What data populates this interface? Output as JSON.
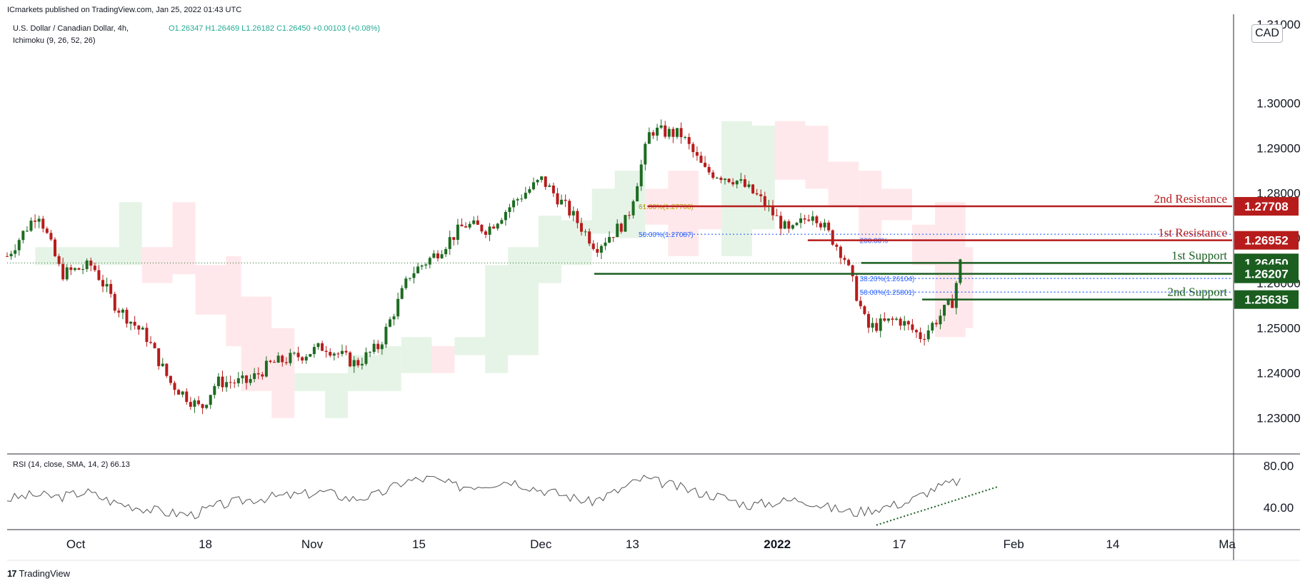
{
  "header": {
    "publisher": "ICmarkets published on TradingView.com, Jan 25, 2022 01:43 UTC",
    "symbol": "U.S. Dollar / Canadian Dollar, 4h,",
    "indicator": "Ichimoku (9, 26, 52, 26)",
    "ohlc": "O1.26347  H1.26469  L1.26182  C1.26450  +0.00103 (+0.08%)",
    "currency": "CAD"
  },
  "footer": {
    "logo": "17",
    "brand": "TradingView"
  },
  "colors": {
    "up": "#1e6b22",
    "down": "#b71c1c",
    "resistance": "#b71c1c",
    "support": "#1b5e20",
    "fib": "#2962ff",
    "rsi": "#555555",
    "cloud_green": "#c8e6c9",
    "cloud_red": "#ffcdd2"
  },
  "chart_data": {
    "type": "line",
    "title": "U.S. Dollar / Canadian Dollar, 4h",
    "y_axis": {
      "ticks": [
        1.3,
        1.29,
        1.28,
        1.27,
        1.26,
        1.25,
        1.24,
        1.23
      ],
      "tick_labels": [
        "1.30000",
        "1.29000",
        "1.28000",
        "1.27000",
        "1.26000",
        "1.25000",
        "1.24000",
        "1.23000"
      ],
      "partial_top_label": "1.31000",
      "ylim": [
        1.2225,
        1.3185
      ]
    },
    "x_axis": {
      "tick_labels": [
        "Oct",
        "18",
        "Nov",
        "15",
        "Dec",
        "13",
        "2022",
        "17",
        "Feb",
        "14",
        "Ma"
      ],
      "bold_labels": [
        "2022"
      ]
    },
    "price_path": {
      "dates": [
        "2021-09-24",
        "2021-09-28",
        "2021-10-01",
        "2021-10-05",
        "2021-10-08",
        "2021-10-12",
        "2021-10-15",
        "2021-10-19",
        "2021-10-21",
        "2021-10-25",
        "2021-10-28",
        "2021-11-01",
        "2021-11-04",
        "2021-11-08",
        "2021-11-11",
        "2021-11-15",
        "2021-11-18",
        "2021-11-22",
        "2021-11-25",
        "2021-11-29",
        "2021-12-02",
        "2021-12-06",
        "2021-12-09",
        "2021-12-13",
        "2021-12-16",
        "2021-12-20",
        "2021-12-23",
        "2021-12-27",
        "2021-12-30",
        "2022-01-03",
        "2022-01-06",
        "2022-01-10",
        "2022-01-13",
        "2022-01-17",
        "2022-01-20",
        "2022-01-24",
        "2022-01-25"
      ],
      "close": [
        1.266,
        1.276,
        1.262,
        1.264,
        1.255,
        1.248,
        1.238,
        1.232,
        1.238,
        1.238,
        1.242,
        1.244,
        1.246,
        1.242,
        1.246,
        1.262,
        1.266,
        1.273,
        1.272,
        1.279,
        1.283,
        1.275,
        1.268,
        1.274,
        1.294,
        1.293,
        1.285,
        1.283,
        1.279,
        1.271,
        1.276,
        1.266,
        1.25,
        1.252,
        1.248,
        1.256,
        1.2645
      ]
    },
    "levels": [
      {
        "name": "2nd Resistance",
        "value": 1.27708,
        "label": "1.27708",
        "kind": "resistance"
      },
      {
        "name": "1st Resistance",
        "value": 1.26952,
        "label": "1.26952",
        "kind": "resistance"
      },
      {
        "name": "1st Support",
        "value": 1.2645,
        "label": "1.26450",
        "kind": "support"
      },
      {
        "name": "",
        "value": 1.26207,
        "label": "1.26207",
        "kind": "support"
      },
      {
        "name": "2nd Support",
        "value": 1.25635,
        "label": "1.25635",
        "kind": "support"
      }
    ],
    "fibonacci": [
      {
        "label": "61.80%(1.27708)",
        "value": 1.27708
      },
      {
        "label": "50.00%(1.27087)",
        "value": 1.27087
      },
      {
        "label": "200.00%",
        "value": 1.26952
      },
      {
        "label": "38.20%(1.26104)",
        "value": 1.26104
      },
      {
        "label": "50.00%(1.25801)",
        "value": 1.25801
      }
    ],
    "rsi": {
      "label": "RSI (14, close, SMA, 14, 2)",
      "value": "66.13",
      "y_axis": {
        "ticks": [
          80,
          40
        ],
        "tick_labels": [
          "80.00",
          "40.00"
        ],
        "ylim": [
          20,
          90
        ]
      },
      "values": [
        48,
        52,
        50,
        55,
        45,
        40,
        35,
        33,
        42,
        47,
        50,
        52,
        55,
        48,
        52,
        65,
        68,
        60,
        62,
        66,
        58,
        52,
        45,
        55,
        68,
        62,
        55,
        50,
        42,
        45,
        48,
        40,
        35,
        40,
        45,
        58,
        66
      ]
    }
  }
}
